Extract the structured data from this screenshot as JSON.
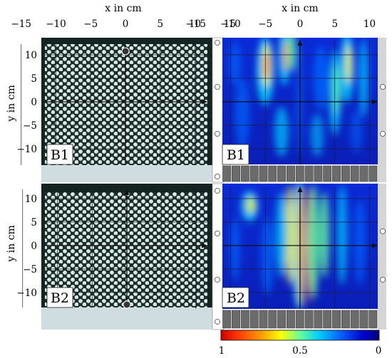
{
  "figure": {
    "x_axis_label": "x in cm",
    "y_axis_label": "y in cm",
    "x_ticks": [
      "−15",
      "−10",
      "−5",
      "0",
      "5",
      "10",
      "15"
    ],
    "y_ticks": [
      "10",
      "5",
      "0",
      "−5",
      "−10"
    ],
    "panels": [
      {
        "id": "left-top",
        "kind": "photo",
        "label": "B1"
      },
      {
        "id": "right-top",
        "kind": "intensity-map",
        "label": "B1"
      },
      {
        "id": "left-bottom",
        "kind": "photo",
        "label": "B2"
      },
      {
        "id": "right-bottom",
        "kind": "intensity-map",
        "label": "B2"
      }
    ],
    "colorbar": {
      "tick_labels": [
        "1",
        "0.5",
        "0"
      ],
      "colors": [
        "#cc0000",
        "#ff3300",
        "#ff9900",
        "#ffff00",
        "#66ff99",
        "#00ccff",
        "#0066ff",
        "#0000cc",
        "#000080"
      ]
    }
  }
}
